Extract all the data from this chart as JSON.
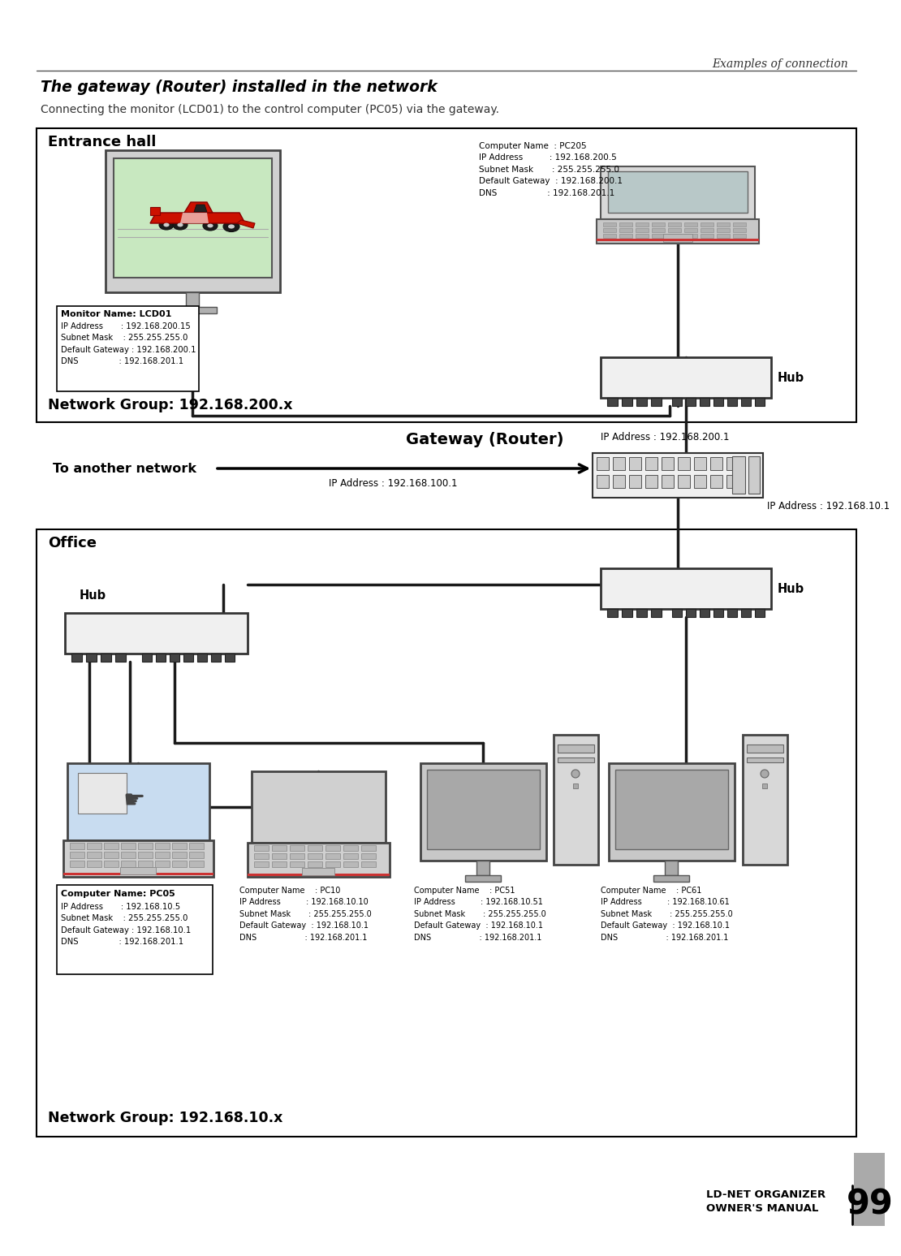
{
  "page_title": "Examples of connection",
  "section_title": "The gateway (Router) installed in the network",
  "section_subtitle": "Connecting the monitor (LCD01) to the control computer (PC05) via the gateway.",
  "footer_line1": "LD-NET ORGANIZER",
  "footer_line2": "OWNER'S MANUAL",
  "page_number": "99",
  "entrance_hall_label": "Entrance hall",
  "entrance_hall_network": "Network Group: 192.168.200.x",
  "office_label": "Office",
  "office_network": "Network Group: 192.168.10.x",
  "gateway_label": "Gateway (Router)",
  "gateway_ip_right": "IP Address : 192.168.200.1",
  "gateway_ip_bottom": "IP Address : 192.168.10.1",
  "to_another_network": "To another network",
  "another_network_ip": "IP Address : 192.168.100.1",
  "hub_label": "Hub",
  "monitor_info_bold": "Monitor Name: LCD01",
  "monitor_info_rest": "IP Address       : 192.168.200.15\nSubnet Mask    : 255.255.255.0\nDefault Gateway : 192.168.200.1\nDNS                : 192.168.201.1",
  "pc205_info": "Computer Name  : PC205\nIP Address          : 192.168.200.5\nSubnet Mask       : 255.255.255.0\nDefault Gateway  : 192.168.200.1\nDNS                   : 192.168.201.1",
  "pc05_bold": "Computer Name: PC05",
  "pc05_rest": "IP Address       : 192.168.10.5\nSubnet Mask    : 255.255.255.0\nDefault Gateway : 192.168.10.1\nDNS                : 192.168.201.1",
  "pc10_info": "Computer Name    : PC10\nIP Address          : 192.168.10.10\nSubnet Mask       : 255.255.255.0\nDefault Gateway  : 192.168.10.1\nDNS                   : 192.168.201.1",
  "pc51_info": "Computer Name    : PC51\nIP Address          : 192.168.10.51\nSubnet Mask       : 255.255.255.0\nDefault Gateway  : 192.168.10.1\nDNS                   : 192.168.201.1",
  "pc61_info": "Computer Name    : PC61\nIP Address          : 192.168.10.61\nSubnet Mask       : 255.255.255.0\nDefault Gateway  : 192.168.10.1\nDNS                   : 192.168.201.1",
  "bg_color": "#ffffff"
}
